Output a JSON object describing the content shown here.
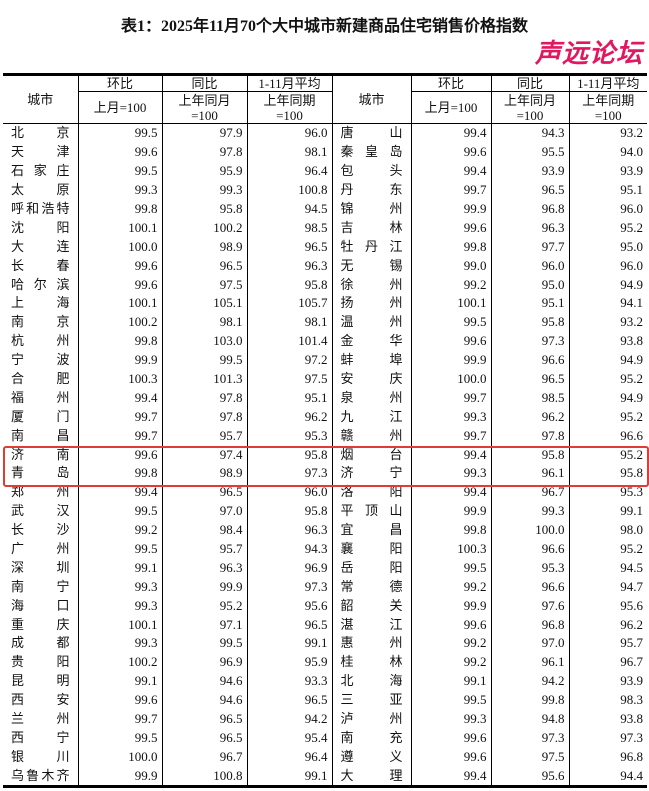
{
  "title": "表1：2025年11月70个大中城市新建商品住宅销售价格指数",
  "headers": {
    "city": "城市",
    "mom": "环比",
    "mom_base": "上月=100",
    "yoy": "同比",
    "yoy_base_1": "上年同月",
    "yoy_base_2": "=100",
    "avg": "1-11月平均",
    "avg_base_1": "上年同期",
    "avg_base_2": "=100"
  },
  "left_rows": [
    [
      "北京",
      "99.5",
      "97.9",
      "96.0"
    ],
    [
      "天津",
      "99.6",
      "97.8",
      "98.1"
    ],
    [
      "石家庄",
      "99.5",
      "95.9",
      "96.4"
    ],
    [
      "太原",
      "99.3",
      "99.3",
      "100.8"
    ],
    [
      "呼和浩特",
      "99.8",
      "95.8",
      "94.5"
    ],
    [
      "沈阳",
      "100.1",
      "100.2",
      "98.5"
    ],
    [
      "大连",
      "100.0",
      "98.9",
      "96.5"
    ],
    [
      "长春",
      "99.6",
      "96.5",
      "96.3"
    ],
    [
      "哈尔滨",
      "99.6",
      "97.5",
      "95.8"
    ],
    [
      "上海",
      "100.1",
      "105.1",
      "105.7"
    ],
    [
      "南京",
      "100.2",
      "98.1",
      "98.1"
    ],
    [
      "杭州",
      "99.8",
      "103.0",
      "101.4"
    ],
    [
      "宁波",
      "99.9",
      "99.5",
      "97.2"
    ],
    [
      "合肥",
      "100.3",
      "101.3",
      "97.5"
    ],
    [
      "福州",
      "99.4",
      "97.8",
      "95.1"
    ],
    [
      "厦门",
      "99.7",
      "97.8",
      "96.2"
    ],
    [
      "南昌",
      "99.7",
      "95.7",
      "95.3"
    ],
    [
      "济南",
      "99.6",
      "97.4",
      "95.8"
    ],
    [
      "青岛",
      "99.8",
      "98.9",
      "97.3"
    ],
    [
      "郑州",
      "99.4",
      "96.5",
      "96.0"
    ],
    [
      "武汉",
      "99.5",
      "97.0",
      "95.8"
    ],
    [
      "长沙",
      "99.2",
      "98.4",
      "96.3"
    ],
    [
      "广州",
      "99.5",
      "95.7",
      "94.3"
    ],
    [
      "深圳",
      "99.1",
      "96.3",
      "96.9"
    ],
    [
      "南宁",
      "99.3",
      "99.9",
      "97.3"
    ],
    [
      "海口",
      "99.3",
      "95.2",
      "95.6"
    ],
    [
      "重庆",
      "100.1",
      "97.1",
      "96.5"
    ],
    [
      "成都",
      "99.3",
      "99.5",
      "99.1"
    ],
    [
      "贵阳",
      "100.2",
      "96.9",
      "95.9"
    ],
    [
      "昆明",
      "99.1",
      "94.6",
      "93.3"
    ],
    [
      "西安",
      "99.6",
      "94.6",
      "96.5"
    ],
    [
      "兰州",
      "99.7",
      "96.5",
      "94.2"
    ],
    [
      "西宁",
      "99.5",
      "96.5",
      "95.4"
    ],
    [
      "银川",
      "100.0",
      "96.7",
      "96.4"
    ],
    [
      "乌鲁木齐",
      "99.9",
      "100.8",
      "99.1"
    ]
  ],
  "right_rows": [
    [
      "唐山",
      "99.4",
      "94.3",
      "93.2"
    ],
    [
      "秦皇岛",
      "99.6",
      "95.5",
      "94.0"
    ],
    [
      "包头",
      "99.4",
      "93.9",
      "93.9"
    ],
    [
      "丹东",
      "99.7",
      "96.5",
      "95.1"
    ],
    [
      "锦州",
      "99.9",
      "96.8",
      "96.0"
    ],
    [
      "吉林",
      "99.6",
      "96.3",
      "95.2"
    ],
    [
      "牡丹江",
      "99.8",
      "97.7",
      "95.0"
    ],
    [
      "无锡",
      "99.0",
      "96.0",
      "96.0"
    ],
    [
      "徐州",
      "99.2",
      "95.0",
      "94.9"
    ],
    [
      "扬州",
      "100.1",
      "95.1",
      "94.1"
    ],
    [
      "温州",
      "99.5",
      "95.8",
      "93.2"
    ],
    [
      "金华",
      "99.6",
      "97.3",
      "93.8"
    ],
    [
      "蚌埠",
      "99.9",
      "96.6",
      "94.9"
    ],
    [
      "安庆",
      "100.0",
      "96.5",
      "95.2"
    ],
    [
      "泉州",
      "99.7",
      "98.5",
      "94.9"
    ],
    [
      "九江",
      "99.3",
      "96.2",
      "95.2"
    ],
    [
      "赣州",
      "99.7",
      "97.8",
      "96.6"
    ],
    [
      "烟台",
      "99.4",
      "95.8",
      "95.2"
    ],
    [
      "济宁",
      "99.3",
      "96.1",
      "95.8"
    ],
    [
      "洛阳",
      "99.4",
      "96.7",
      "95.3"
    ],
    [
      "平顶山",
      "99.9",
      "99.3",
      "99.1"
    ],
    [
      "宜昌",
      "99.8",
      "100.0",
      "98.0"
    ],
    [
      "襄阳",
      "100.3",
      "96.6",
      "95.2"
    ],
    [
      "岳阳",
      "99.5",
      "95.3",
      "94.5"
    ],
    [
      "常德",
      "99.2",
      "96.6",
      "94.7"
    ],
    [
      "韶关",
      "99.9",
      "97.6",
      "95.6"
    ],
    [
      "湛江",
      "99.6",
      "96.8",
      "96.2"
    ],
    [
      "惠州",
      "99.2",
      "97.0",
      "95.7"
    ],
    [
      "桂林",
      "99.2",
      "96.1",
      "96.7"
    ],
    [
      "北海",
      "99.1",
      "94.2",
      "93.9"
    ],
    [
      "三亚",
      "99.5",
      "99.8",
      "98.3"
    ],
    [
      "泸州",
      "99.3",
      "94.8",
      "93.8"
    ],
    [
      "南充",
      "99.6",
      "97.3",
      "97.3"
    ],
    [
      "遵义",
      "99.6",
      "97.5",
      "96.8"
    ],
    [
      "大理",
      "99.4",
      "95.6",
      "94.4"
    ]
  ],
  "highlight_color": "#e23b36",
  "watermark": "声远论坛",
  "watermark_color": "#e2185f"
}
